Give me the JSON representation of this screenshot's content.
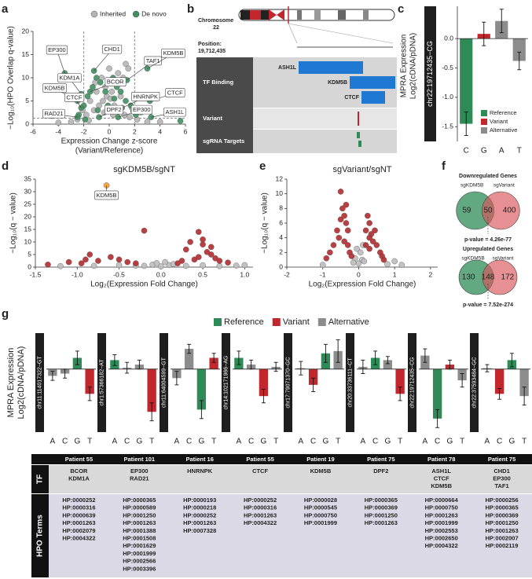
{
  "panel_labels": [
    "a",
    "b",
    "c",
    "d",
    "e",
    "f",
    "g"
  ],
  "chart_data": [
    {
      "type": "scatter",
      "y_label": [
        "−Log₁₀(HPO Overlap q-value)"
      ],
      "x_label": [
        "Expression Change z-score",
        "(Variant/Reference)"
      ],
      "legend": "top",
      "xlim": [
        -6,
        6
      ],
      "xticks": [
        -6,
        -4,
        -2,
        0,
        2,
        4,
        6
      ],
      "ylim": [
        0,
        20
      ],
      "yticks": [
        0,
        5,
        10,
        15,
        20
      ],
      "thresholds": {
        "x": [
          -2,
          2
        ],
        "y": [
          1.3
        ]
      },
      "series": [
        {
          "name": "Inherited",
          "color": "#b5b5b5",
          "x": [
            -2.5,
            -1.8,
            -1.2,
            -0.8,
            -0.5,
            -0.2,
            0.1,
            0.4,
            0.8,
            1.2,
            1.6,
            2.2,
            -3,
            3,
            -1.5,
            -1,
            -0.3,
            0.2,
            0.6,
            1.1,
            1.5,
            1.3,
            -0.6,
            0,
            -1.1,
            0.9,
            -2.1,
            2.5,
            -4,
            4,
            0.3,
            -0.4,
            -1.6,
            1.8,
            0.7
          ],
          "values": [
            1,
            2,
            3,
            4,
            5,
            6,
            5.5,
            4,
            3,
            2,
            1.5,
            1,
            0.5,
            0.5,
            5,
            7,
            8,
            7,
            9,
            10,
            12,
            13,
            10,
            12,
            9,
            6,
            3,
            2.5,
            0.3,
            0.5,
            2,
            2.5,
            0.8,
            3.5,
            11
          ]
        },
        {
          "name": "De novo",
          "color": "#3f8f5f",
          "x": [
            -2.4,
            -2,
            -1.7,
            -1.3,
            -1,
            -0.7,
            -0.3,
            0,
            0.3,
            0.6,
            0.9,
            1.3,
            1.7,
            2.1,
            -3.5,
            -1.2,
            1.4,
            3,
            3.2,
            -2.2,
            -2.5,
            -2.2,
            -1.5,
            1,
            3.3,
            -2.5,
            -0.8,
            0.7,
            -0.1,
            0.4,
            -0.9,
            1.9,
            -1.9,
            5.6,
            -4.5
          ],
          "values": [
            2,
            4,
            6,
            8,
            10,
            9,
            7,
            9,
            10,
            8,
            7,
            5,
            4,
            2,
            11,
            11.5,
            9.5,
            12,
            5,
            6.5,
            5,
            3.5,
            7,
            3.5,
            1.5,
            1.5,
            1.5,
            1.5,
            4,
            5.5,
            3,
            2.8,
            1,
            0.7,
            1.8
          ]
        }
      ],
      "annotations": [
        {
          "text": "EP300",
          "x": -3.5,
          "y": 11
        },
        {
          "text": "CHD1",
          "x": -1.2,
          "y": 11.5
        },
        {
          "text": "TAF1",
          "x": 1.4,
          "y": 9.5
        },
        {
          "text": "KDM5B",
          "x": 3,
          "y": 12
        },
        {
          "text": "CTCF",
          "x": 3.2,
          "y": 5
        },
        {
          "text": "KDM1A",
          "x": -2.2,
          "y": 6.5
        },
        {
          "text": "KDM5B",
          "x": -2.5,
          "y": 5
        },
        {
          "text": "CTCF",
          "x": -2.2,
          "y": 3.5
        },
        {
          "text": "BCOR",
          "x": -1.5,
          "y": 7
        },
        {
          "text": "HNRNPK",
          "x": 1,
          "y": 3.5
        },
        {
          "text": "ASH1L",
          "x": 3.3,
          "y": 1.5
        },
        {
          "text": "RAD21",
          "x": -2.5,
          "y": 1.5
        },
        {
          "text": "DPF2",
          "x": -0.8,
          "y": 1.5
        },
        {
          "text": "EP300",
          "x": 0.7,
          "y": 1.5
        }
      ]
    },
    {
      "type": "bar",
      "label": "chr22:19712435−CG",
      "y_label": [
        "MPRA Expression",
        "Log2(cDNA/pDNA)"
      ],
      "categories": [
        "C",
        "G",
        "A",
        "T"
      ],
      "values": [
        -1.45,
        0.08,
        0.3,
        -0.38
      ],
      "errors": [
        0.2,
        0.2,
        0.2,
        0.15
      ],
      "colors": [
        "#2e8b57",
        "#c1272d",
        "#8c8c8c",
        "#8c8c8c"
      ],
      "ylim": [
        -1.75,
        0.55
      ],
      "yticks": [
        -1.5,
        {
          "value": -1.0,
          "label": "-1.0"
        },
        -0.5,
        {
          "value": 0.0,
          "label": "0.0"
        }
      ],
      "legend": [
        {
          "name": "Reference",
          "color": "#2e8b57"
        },
        {
          "name": "Variant",
          "color": "#c1272d"
        },
        {
          "name": "Alternative",
          "color": "#8c8c8c"
        }
      ]
    },
    {
      "type": "scatter",
      "title": "sgKDM5B/sgNT",
      "y_label": [
        "−Log₁₀(q − value)"
      ],
      "x_label": [
        "Log₂(Expression Fold Change)"
      ],
      "xlim": [
        -1.5,
        1.1
      ],
      "xticks": [
        -1.5,
        {
          "value": -1.0,
          "label": "-1.0"
        },
        -0.5,
        {
          "value": 0.0,
          "label": "0.0"
        },
        0.5,
        {
          "value": 1.0,
          "label": "1.0"
        }
      ],
      "ylim": [
        0,
        35
      ],
      "yticks": [
        0,
        5,
        10,
        15,
        20,
        25,
        30,
        35
      ],
      "series": [
        {
          "color": "#bdbdbd",
          "x": [
            -0.2,
            -0.1,
            0,
            0.1,
            0.15,
            -0.3,
            -0.5,
            0.3,
            0.5,
            0.7,
            0.9,
            1,
            -0.8,
            -1.2,
            0.05,
            -0.05
          ],
          "values": [
            0.5,
            1,
            0.3,
            0.8,
            1.2,
            0.6,
            0.8,
            0.5,
            0.7,
            0.4,
            0.6,
            0.8,
            0.5,
            0.4,
            2,
            1.6
          ]
        },
        {
          "color": "#b22a2e",
          "x": [
            -1.1,
            -0.9,
            -0.75,
            -0.6,
            -0.5,
            -0.4,
            -0.3,
            -0.85,
            -0.2,
            0.45,
            0.3,
            0.35,
            0.5,
            0.55,
            0.6,
            0.45,
            0.4,
            0.25,
            0.65,
            0.7,
            0.2,
            0.8,
            -1.35,
            -0.95,
            0.5,
            0.6
          ],
          "values": [
            2,
            3,
            2.5,
            4,
            3,
            2,
            1.5,
            5,
            14.5,
            14,
            7,
            10,
            9,
            6,
            5,
            4,
            3,
            2.5,
            3.5,
            2.5,
            1.5,
            1.8,
            1,
            1.5,
            11,
            8
          ]
        },
        {
          "color": "#f39c32",
          "x": [
            -0.65
          ],
          "values": [
            32.5
          ]
        }
      ],
      "annotations": [
        {
          "text": "KDM5B",
          "x": -0.65,
          "y": 32.5
        }
      ]
    },
    {
      "type": "scatter",
      "title": "sgVariant/sgNT",
      "y_label": [
        "−Log₁₀(q − value)"
      ],
      "x_label": [
        "Log₂(Expression Fold Change)"
      ],
      "xlim": [
        -2,
        2.2
      ],
      "xticks": [
        -2,
        -1,
        0,
        1,
        2
      ],
      "ylim": [
        0,
        12
      ],
      "yticks": [
        0,
        2,
        4,
        6,
        8,
        10,
        12
      ],
      "series": [
        {
          "color": "#bdbdbd",
          "x": [
            0,
            0.1,
            -0.1,
            0.05,
            -0.05,
            0.15,
            -0.15,
            0.8,
            1,
            1.2,
            -1,
            0.12
          ],
          "values": [
            0.5,
            1,
            1.2,
            2,
            2.5,
            0.8,
            0.6,
            0.4,
            0.8,
            0.3,
            0.3,
            3
          ]
        },
        {
          "color": "#b22a2e",
          "x": [
            -0.5,
            -0.45,
            -0.4,
            -0.35,
            -0.3,
            -0.5,
            -0.6,
            -0.55,
            -0.4,
            -0.3,
            -0.7,
            -0.8,
            -0.25,
            -0.2,
            -0.9,
            0.25,
            0.3,
            0.2,
            0.35,
            0.4,
            0.5,
            0.6,
            0.3,
            0.45,
            0.2,
            0.65,
            0.7,
            -0.35,
            0.3
          ],
          "values": [
            10.3,
            8,
            7,
            6,
            5,
            6.5,
            5,
            4,
            3.5,
            3,
            3,
            2,
            2,
            1.5,
            1.2,
            7,
            6,
            5,
            4.5,
            3.5,
            3,
            2,
            2.5,
            5,
            3,
            1.5,
            1,
            8.5,
            4
          ]
        }
      ]
    },
    {
      "type": "venn",
      "title": "Downregulated Genes",
      "sets": [
        "sgKDM5B",
        "sgVariant"
      ],
      "colors": [
        "#2e8b57",
        "#d9545a"
      ],
      "only_a": 59,
      "both": 50,
      "only_b": 400,
      "p_value": "p-value = 4.26e-77"
    },
    {
      "type": "venn",
      "title": "Upregulated Genes",
      "sets": [
        "sgKDM5B",
        "sgVariant"
      ],
      "colors": [
        "#2e8b57",
        "#d9545a"
      ],
      "only_a": 130,
      "both": 148,
      "only_b": 172,
      "p_value": "p-value = 7.52e-274"
    },
    {
      "type": "bar",
      "label": "chr11:114017322−GT",
      "categories": [
        "A",
        "C",
        "G",
        "T"
      ],
      "values": [
        -0.15,
        -0.1,
        0.25,
        -0.55
      ],
      "errors": [
        0.1,
        0.1,
        0.15,
        0.15
      ],
      "colors": [
        "#8c8c8c",
        "#8c8c8c",
        "#2e8b57",
        "#c1272d"
      ],
      "ylim": [
        -1.4,
        0.8
      ]
    },
    {
      "type": "bar",
      "label": "chr1:57366182−AT",
      "categories": [
        "A",
        "C",
        "G",
        "T"
      ],
      "values": [
        0.2,
        0.03,
        0.1,
        -0.95
      ],
      "errors": [
        0.12,
        0.12,
        0.1,
        0.2
      ],
      "colors": [
        "#2e8b57",
        "#8c8c8c",
        "#8c8c8c",
        "#c1272d"
      ],
      "ylim": [
        -1.4,
        0.8
      ]
    },
    {
      "type": "bar",
      "label": "chr11:64004599−GT",
      "categories": [
        "A",
        "C",
        "G",
        "T"
      ],
      "values": [
        -0.2,
        0.45,
        -0.9,
        0.25
      ],
      "errors": [
        0.15,
        0.1,
        0.2,
        0.1
      ],
      "colors": [
        "#8c8c8c",
        "#8c8c8c",
        "#2e8b57",
        "#c1272d"
      ],
      "ylim": [
        -1.4,
        0.8
      ]
    },
    {
      "type": "bar",
      "label": "chr14:102171966−AG",
      "categories": [
        "A",
        "C",
        "G",
        "T"
      ],
      "values": [
        0.25,
        0.1,
        -0.6,
        0.05
      ],
      "errors": [
        0.15,
        0.1,
        0.15,
        0.1
      ],
      "colors": [
        "#2e8b57",
        "#8c8c8c",
        "#c1272d",
        "#8c8c8c"
      ],
      "ylim": [
        -1.4,
        0.8
      ]
    },
    {
      "type": "bar",
      "label": "chr17:79071370−GC",
      "categories": [
        "A",
        "C",
        "G",
        "T"
      ],
      "values": [
        0.02,
        -0.35,
        0.35,
        0.4
      ],
      "errors": [
        0.15,
        0.15,
        0.2,
        0.25
      ],
      "colors": [
        "#8c8c8c",
        "#c1272d",
        "#2e8b57",
        "#8c8c8c"
      ],
      "ylim": [
        -1.4,
        0.8
      ]
    },
    {
      "type": "bar",
      "label": "chr20:33736111−CT",
      "categories": [
        "A",
        "C",
        "G",
        "T"
      ],
      "values": [
        0.05,
        0.25,
        0.2,
        -0.55
      ],
      "errors": [
        0.15,
        0.15,
        0.08,
        0.15
      ],
      "colors": [
        "#8c8c8c",
        "#2e8b57",
        "#8c8c8c",
        "#c1272d"
      ],
      "ylim": [
        -1.4,
        0.8
      ]
    },
    {
      "type": "bar",
      "label": "chr22:19712435−CG",
      "categories": [
        "A",
        "C",
        "G",
        "T"
      ],
      "values": [
        0.3,
        -1.1,
        0.1,
        -0.25
      ],
      "errors": [
        0.15,
        0.2,
        0.1,
        0.15
      ],
      "colors": [
        "#8c8c8c",
        "#2e8b57",
        "#c1272d",
        "#8c8c8c"
      ],
      "ylim": [
        -1.4,
        0.8
      ]
    },
    {
      "type": "bar",
      "label": "chr22:37593484−GC",
      "categories": [
        "A",
        "C",
        "G",
        "T"
      ],
      "values": [
        0.02,
        -0.55,
        0.2,
        -0.6
      ],
      "errors": [
        0.08,
        0.12,
        0.15,
        0.2
      ],
      "colors": [
        "#8c8c8c",
        "#c1272d",
        "#2e8b57",
        "#8c8c8c"
      ],
      "ylim": [
        -1.4,
        0.8
      ]
    }
  ],
  "panel_b": {
    "chromosome": [
      "Chromosome",
      "22"
    ],
    "position": [
      "Position:",
      "19,712,435"
    ],
    "tracks": [
      "TF Binding",
      "Variant",
      "sgRNA Targets"
    ],
    "tfs": [
      "ASH1L",
      "KDM5B",
      "CTCF"
    ]
  },
  "panel_g": {
    "y_label": [
      "MPRA Expression",
      "Log2(cDNA/pDNA)"
    ],
    "legend": [
      {
        "name": "Reference",
        "color": "#2e8b57"
      },
      {
        "name": "Variant",
        "color": "#c1272d"
      },
      {
        "name": "Alternative",
        "color": "#8c8c8c"
      }
    ]
  },
  "table": {
    "row_headers": [
      "TF",
      "HPO Terms"
    ],
    "columns": [
      {
        "patient": "Patient 55",
        "tf": [
          "BCOR",
          "KDM1A"
        ],
        "hpo": [
          "HP:0000252",
          "HP:0000316",
          "HP:0000639",
          "HP:0001263",
          "HP:0002079",
          "HP:0004322"
        ]
      },
      {
        "patient": "Patient 101",
        "tf": [
          "EP300",
          "RAD21"
        ],
        "hpo": [
          "HP:0000365",
          "HP:0000589",
          "HP:0001250",
          "HP:0001263",
          "HP:0001388",
          "HP:0001508",
          "HP:0001629",
          "HP:0001999",
          "HP:0002566",
          "HP:0003396"
        ]
      },
      {
        "patient": "Patient 16",
        "tf": [
          "HNRNPK"
        ],
        "hpo": [
          "HP:0000193",
          "HP:0000218",
          "HP:0000252",
          "HP:0001263",
          "HP:0007328"
        ]
      },
      {
        "patient": "Patient 55",
        "tf": [
          "CTCF"
        ],
        "hpo": [
          "HP:0000252",
          "HP:0000316",
          "HP:0001263",
          "HP:0004322"
        ]
      },
      {
        "patient": "Patient 19",
        "tf": [
          "KDM5B"
        ],
        "hpo": [
          "HP:0000028",
          "HP:0000545",
          "HP:0000750",
          "HP:0001999"
        ]
      },
      {
        "patient": "Patient 75",
        "tf": [
          "DPF2"
        ],
        "hpo": [
          "HP:0000365",
          "HP:0000369",
          "HP:0001250",
          "HP:0001263"
        ]
      },
      {
        "patient": "Patient 78",
        "tf": [
          "ASH1L",
          "CTCF",
          "KDM5B"
        ],
        "hpo": [
          "HP:0000664",
          "HP:0000750",
          "HP:0001263",
          "HP:0001999",
          "HP:0002553",
          "HP:0002650",
          "HP:0004322"
        ]
      },
      {
        "patient": "Patient 75",
        "tf": [
          "CHD1",
          "EP300",
          "TAF1"
        ],
        "hpo": [
          "HP:0000256",
          "HP:0000365",
          "HP:0000369",
          "HP:0001250",
          "HP:0001263",
          "HP:0002007",
          "HP:0002119"
        ]
      }
    ]
  }
}
